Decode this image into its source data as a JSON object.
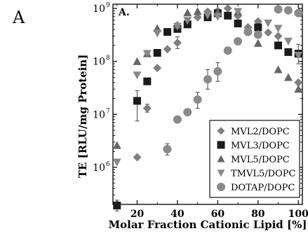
{
  "panel_label": "A",
  "chart_data": {
    "type": "scatter",
    "inset_label": "A.",
    "xlabel": "Molar Fraction Cationic Lipid [%]",
    "ylabel": "TE [RLU/mg Protein]",
    "xlim": [
      8,
      102
    ],
    "ylim_log10": [
      5.3,
      9.08
    ],
    "log_y": true,
    "x_ticks": [
      20,
      40,
      60,
      80,
      100
    ],
    "x_tick_labels": [
      "20",
      "40",
      "60",
      "80",
      "100"
    ],
    "y_ticks": [
      1000000,
      10000000,
      100000000,
      1000000000
    ],
    "y_tick_labels": [
      {
        "base": "10",
        "exp": "6"
      },
      {
        "base": "10",
        "exp": "7"
      },
      {
        "base": "10",
        "exp": "8"
      },
      {
        "base": "10",
        "exp": "9"
      }
    ],
    "legend_position": "bottom-right",
    "colors": {
      "dark": "#1b1b1b",
      "mid": "#666666",
      "light": "#888888",
      "lighter": "#9a9a9a"
    },
    "series": [
      {
        "name": "MVL2/DOPC",
        "marker": "diamond",
        "color": "#7f7f7f",
        "points": [
          {
            "x": 10,
            "y": 200000
          },
          {
            "x": 20,
            "y": 1550000
          },
          {
            "x": 25,
            "y": 13000000,
            "err": [
              11000000,
              15500000
            ]
          },
          {
            "x": 30,
            "y": 75000000
          },
          {
            "x": 35,
            "y": 170000000
          },
          {
            "x": 40,
            "y": 225000000,
            "err": [
              175000000,
              290000000
            ]
          },
          {
            "x": 50,
            "y": 680000000
          },
          {
            "x": 55,
            "y": 870000000
          },
          {
            "x": 60,
            "y": 900000000
          },
          {
            "x": 65,
            "y": 1000000000
          },
          {
            "x": 70,
            "y": 720000000
          },
          {
            "x": 75,
            "y": 440000000
          },
          {
            "x": 80,
            "y": 570000000
          },
          {
            "x": 85,
            "y": 350000000
          },
          {
            "x": 90,
            "y": 300000000,
            "err": [
              220000000,
              410000000
            ]
          },
          {
            "x": 100,
            "y": 40000000
          }
        ]
      },
      {
        "name": "MVL3/DOPC",
        "marker": "square",
        "color": "#1b1b1b",
        "points": [
          {
            "x": 10,
            "y": 190000,
            "err": [
              150000,
              240000
            ]
          },
          {
            "x": 20,
            "y": 18000000,
            "err": [
              7500000,
              28000000
            ]
          },
          {
            "x": 25,
            "y": 42000000
          },
          {
            "x": 30,
            "y": 145000000
          },
          {
            "x": 35,
            "y": 360000000
          },
          {
            "x": 40,
            "y": 410000000
          },
          {
            "x": 45,
            "y": 500000000
          },
          {
            "x": 55,
            "y": 680000000
          },
          {
            "x": 60,
            "y": 810000000
          },
          {
            "x": 65,
            "y": 730000000
          },
          {
            "x": 70,
            "y": 520000000
          },
          {
            "x": 80,
            "y": 440000000
          },
          {
            "x": 90,
            "y": 200000000
          },
          {
            "x": 95,
            "y": 150000000
          },
          {
            "x": 100,
            "y": 140000000,
            "err": [
              90000000,
              210000000
            ]
          }
        ]
      },
      {
        "name": "MVL5/DOPC",
        "marker": "triangle-up",
        "color": "#666666",
        "points": [
          {
            "x": 10,
            "y": 2600000
          },
          {
            "x": 20,
            "y": 100000000
          },
          {
            "x": 25,
            "y": 140000000
          },
          {
            "x": 30,
            "y": 420000000
          },
          {
            "x": 40,
            "y": 490000000
          },
          {
            "x": 45,
            "y": 830000000
          },
          {
            "x": 50,
            "y": 880000000
          },
          {
            "x": 60,
            "y": 840000000
          },
          {
            "x": 70,
            "y": 860000000
          },
          {
            "x": 75,
            "y": 400000000
          },
          {
            "x": 80,
            "y": 220000000
          },
          {
            "x": 90,
            "y": 70000000
          },
          {
            "x": 95,
            "y": 50000000
          },
          {
            "x": 100,
            "y": 30000000
          }
        ]
      },
      {
        "name": "TMVL5/DOPC",
        "marker": "triangle-down",
        "color": "#888888",
        "points": [
          {
            "x": 10,
            "y": 1250000
          },
          {
            "x": 20,
            "y": 55000000
          },
          {
            "x": 25,
            "y": 140000000
          },
          {
            "x": 30,
            "y": 340000000
          },
          {
            "x": 40,
            "y": 460000000
          },
          {
            "x": 45,
            "y": 590000000
          },
          {
            "x": 55,
            "y": 740000000
          },
          {
            "x": 60,
            "y": 700000000
          },
          {
            "x": 70,
            "y": 870000000
          },
          {
            "x": 75,
            "y": 380000000
          },
          {
            "x": 85,
            "y": 530000000
          },
          {
            "x": 90,
            "y": 420000000
          },
          {
            "x": 95,
            "y": 240000000
          },
          {
            "x": 100,
            "y": 130000000
          }
        ]
      },
      {
        "name": "DOTAP/DOPC",
        "marker": "circle",
        "color": "#8a8a8a",
        "points": [
          {
            "x": 35,
            "y": 2200000,
            "err": [
              1700000,
              2800000
            ]
          },
          {
            "x": 40,
            "y": 8000000
          },
          {
            "x": 45,
            "y": 11000000
          },
          {
            "x": 50,
            "y": 19000000,
            "err": [
              13000000,
              26000000
            ]
          },
          {
            "x": 55,
            "y": 46000000,
            "err": [
              30000000,
              70000000
            ]
          },
          {
            "x": 60,
            "y": 65000000,
            "err": [
              42000000,
              95000000
            ]
          },
          {
            "x": 65,
            "y": 160000000
          },
          {
            "x": 70,
            "y": 240000000
          },
          {
            "x": 75,
            "y": 360000000
          },
          {
            "x": 80,
            "y": 320000000
          },
          {
            "x": 90,
            "y": 960000000
          },
          {
            "x": 95,
            "y": 920000000
          },
          {
            "x": 100,
            "y": 820000000
          }
        ]
      }
    ]
  }
}
